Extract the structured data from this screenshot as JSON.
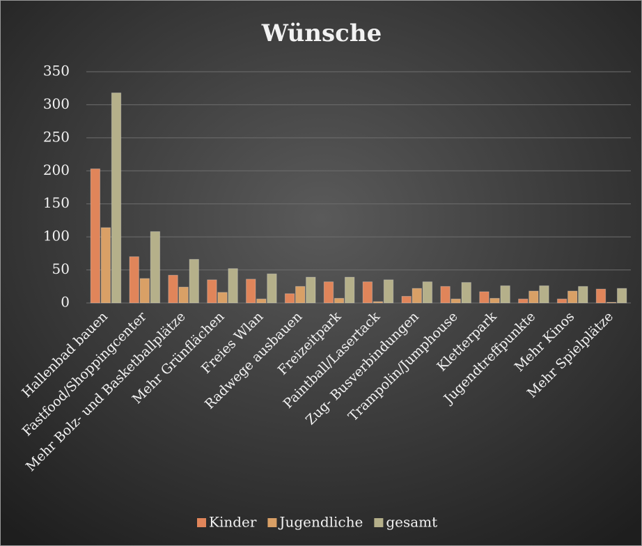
{
  "chart_data": {
    "type": "bar",
    "title": "Wünsche",
    "categories": [
      "Hallenbad bauen",
      "Fastfood/Shoppingcenter",
      "Mehr Bolz- und Basketballplätze",
      "Mehr Grünflächen",
      "Freies Wlan",
      "Radwege ausbauen",
      "Freizeitpark",
      "Paintball/Lasertack",
      "Zug- Busverbindungen",
      "Trampolin/Jumphouse",
      "Kletterpark",
      "Jugendtreffpunkte",
      "Mehr Kinos",
      "Mehr Spielplätze"
    ],
    "series": [
      {
        "name": "Kinder",
        "color": "#e0855a",
        "values": [
          203,
          70,
          42,
          35,
          36,
          14,
          32,
          32,
          10,
          25,
          17,
          6,
          6,
          21
        ]
      },
      {
        "name": "Jugendliche",
        "color": "#d9a066",
        "values": [
          114,
          37,
          24,
          16,
          6,
          25,
          7,
          2,
          22,
          6,
          7,
          18,
          18,
          1
        ]
      },
      {
        "name": "gesamt",
        "color": "#b5b08a",
        "values": [
          318,
          108,
          66,
          52,
          44,
          39,
          39,
          35,
          32,
          31,
          26,
          26,
          25,
          22
        ]
      }
    ],
    "ylim": [
      0,
      350
    ],
    "yticks": [
      0,
      50,
      100,
      150,
      200,
      250,
      300,
      350
    ],
    "grid": true,
    "legend": "bottom"
  }
}
